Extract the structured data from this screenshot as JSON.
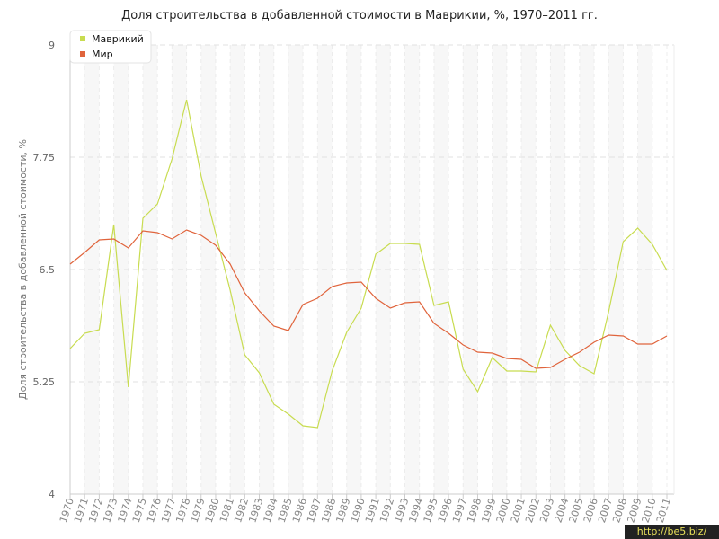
{
  "chart_data": {
    "type": "line",
    "title": "Доля строительства в добавленной стоимости в Маврикии, %, 1970–2011 гг.",
    "xlabel": "",
    "ylabel": "Доля строительства в добавленной стоимости, %",
    "ylim": [
      4,
      9
    ],
    "yticks": [
      4,
      5.25,
      6.5,
      7.75,
      9
    ],
    "ytick_labels": [
      "4",
      "5.25",
      "6.5",
      "7.75",
      "9"
    ],
    "grid": true,
    "legend_position": "top-left",
    "x": [
      "1970",
      "1971",
      "1972",
      "1973",
      "1974",
      "1975",
      "1976",
      "1977",
      "1978",
      "1979",
      "1980",
      "1981",
      "1982",
      "1983",
      "1984",
      "1985",
      "1986",
      "1987",
      "1988",
      "1989",
      "1990",
      "1991",
      "1992",
      "1993",
      "1994",
      "1995",
      "1996",
      "1997",
      "1998",
      "1999",
      "2000",
      "2001",
      "2002",
      "2003",
      "2004",
      "2005",
      "2006",
      "2007",
      "2008",
      "2009",
      "2010",
      "2011"
    ],
    "series": [
      {
        "name": "Маврикий",
        "color": "#c8dc50",
        "values": [
          5.62,
          5.79,
          5.83,
          7.0,
          5.19,
          7.07,
          7.23,
          7.73,
          8.39,
          7.54,
          6.9,
          6.27,
          5.55,
          5.35,
          5.0,
          4.89,
          4.76,
          4.74,
          5.37,
          5.8,
          6.07,
          6.67,
          6.79,
          6.79,
          6.78,
          6.1,
          6.14,
          5.39,
          5.14,
          5.52,
          5.37,
          5.37,
          5.36,
          5.88,
          5.6,
          5.43,
          5.34,
          6.03,
          6.81,
          6.96,
          6.78,
          6.49
        ]
      },
      {
        "name": "Мир",
        "color": "#e0643c",
        "values": [
          6.56,
          6.69,
          6.83,
          6.84,
          6.74,
          6.93,
          6.91,
          6.84,
          6.94,
          6.88,
          6.77,
          6.56,
          6.24,
          6.04,
          5.87,
          5.82,
          6.11,
          6.18,
          6.31,
          6.35,
          6.36,
          6.18,
          6.07,
          6.13,
          6.14,
          5.9,
          5.79,
          5.66,
          5.58,
          5.57,
          5.51,
          5.5,
          5.4,
          5.41,
          5.5,
          5.58,
          5.69,
          5.77,
          5.76,
          5.67,
          5.67,
          5.76
        ]
      }
    ]
  },
  "watermark": "http://be5.biz/"
}
